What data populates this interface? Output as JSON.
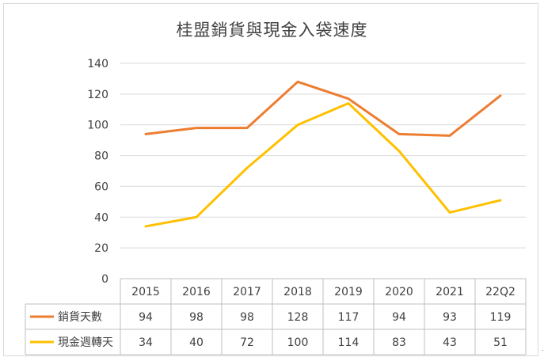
{
  "chart_data": {
    "type": "line",
    "title": "桂盟銷貨與現金入袋速度",
    "categories": [
      "2015",
      "2016",
      "2017",
      "2018",
      "2019",
      "2020",
      "2021",
      "22Q2"
    ],
    "ylim": [
      0,
      140
    ],
    "yticks": [
      "0",
      "20",
      "40",
      "60",
      "80",
      "100",
      "120",
      "140"
    ],
    "grid": true,
    "legend": "data-table",
    "series": [
      {
        "name": "銷貨天數",
        "values": [
          94,
          98,
          98,
          128,
          117,
          94,
          93,
          119
        ],
        "color": "#ed7d31"
      },
      {
        "name": "現金週轉天",
        "values": [
          34,
          40,
          72,
          100,
          114,
          83,
          43,
          51
        ],
        "color": "#ffc000"
      }
    ]
  }
}
